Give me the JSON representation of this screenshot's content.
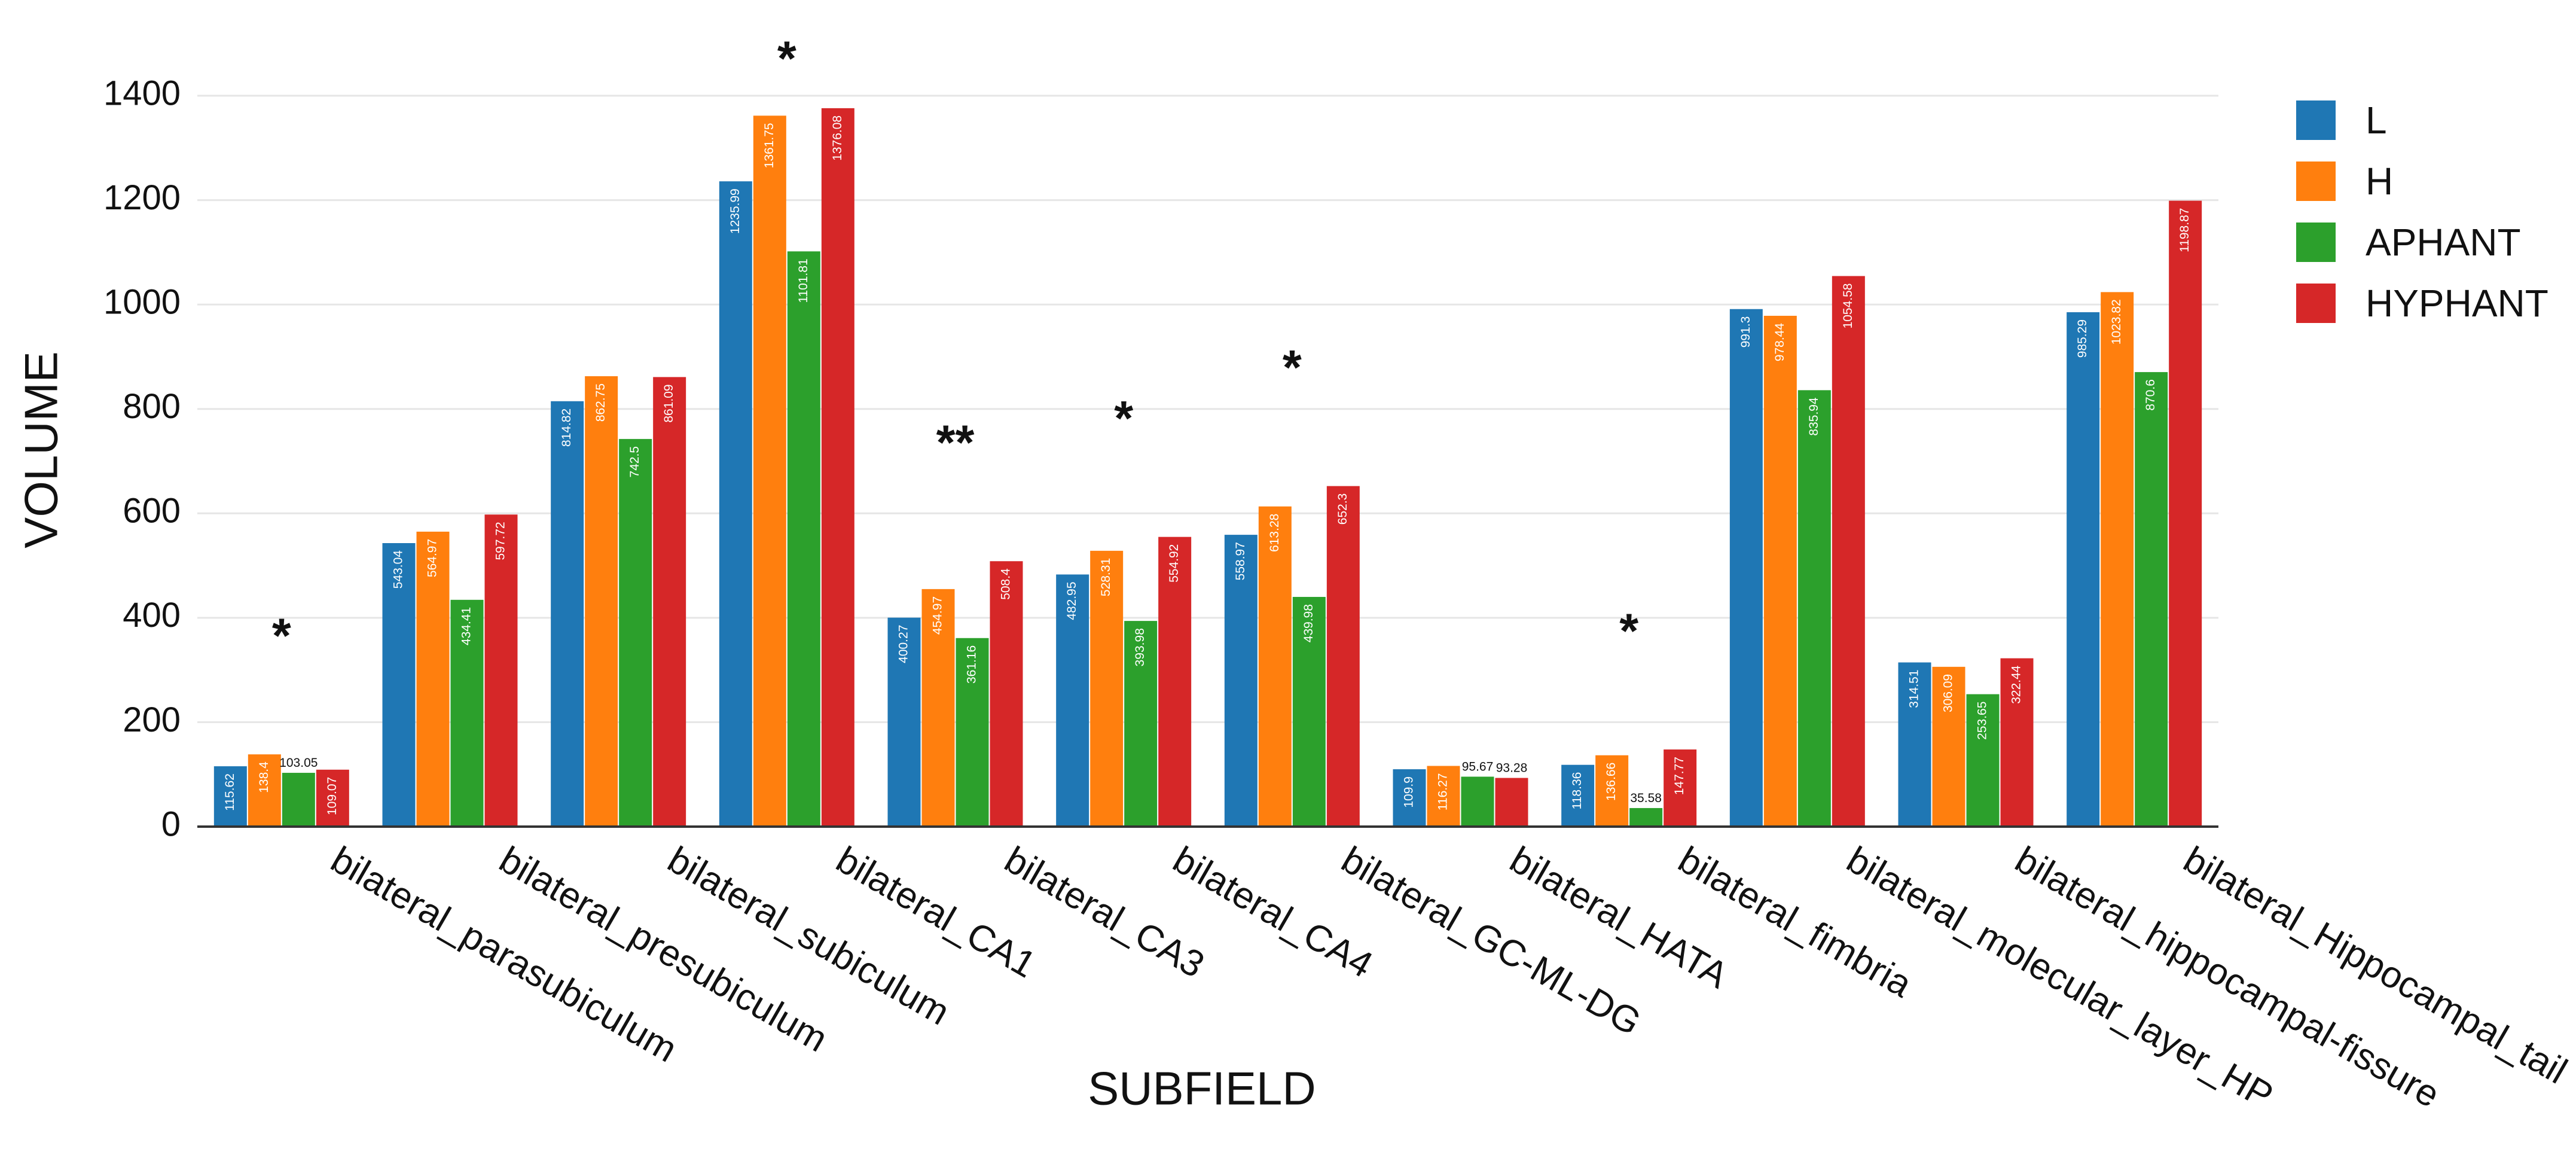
{
  "chart_data": {
    "type": "bar",
    "title": "",
    "xlabel": "SUBFIELD",
    "ylabel": "VOLUME",
    "ylim": [
      0,
      1400
    ],
    "yticks": [
      0,
      200,
      400,
      600,
      800,
      1000,
      1200,
      1400
    ],
    "grid": true,
    "legend_position": "top-right",
    "categories": [
      "bilateral_parasubiculum",
      "bilateral_presubiculum",
      "bilateral_subiculum",
      "bilateral_CA1",
      "bilateral_CA3",
      "bilateral_CA4",
      "bilateral_GC-ML-DG",
      "bilateral_HATA",
      "bilateral_fimbria",
      "bilateral_molecular_layer_HP",
      "bilateral_hippocampal-fissure",
      "bilateral_Hippocampal_tail"
    ],
    "series": [
      {
        "name": "L",
        "color": "#1f77b4",
        "values": [
          115.62,
          543.04,
          814.82,
          1235.99,
          400.27,
          482.95,
          558.97,
          109.9,
          118.36,
          991.3,
          314.51,
          985.29
        ]
      },
      {
        "name": "H",
        "color": "#ff7f0e",
        "values": [
          138.4,
          564.97,
          862.75,
          1361.75,
          454.97,
          528.31,
          613.28,
          116.27,
          136.66,
          978.44,
          306.09,
          1023.82
        ]
      },
      {
        "name": "APHANT",
        "color": "#2ca02c",
        "values": [
          103.05,
          434.41,
          742.5,
          1101.81,
          361.16,
          393.98,
          439.98,
          95.67,
          35.58,
          835.94,
          253.65,
          870.6
        ]
      },
      {
        "name": "HYPHANT",
        "color": "#d62728",
        "values": [
          109.07,
          597.72,
          861.09,
          1376.08,
          508.4,
          554.92,
          652.3,
          93.28,
          147.77,
          1054.58,
          322.44,
          1198.87
        ]
      }
    ],
    "significance": [
      "*",
      "",
      "",
      "*",
      "**",
      "*",
      "*",
      "",
      "*",
      "",
      "",
      ""
    ]
  }
}
